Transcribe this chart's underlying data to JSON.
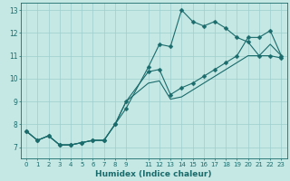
{
  "xlabel": "Humidex (Indice chaleur)",
  "bg_color": "#c5e8e5",
  "grid_color": "#9dcfcc",
  "line_color": "#1a6b6b",
  "xlim": [
    -0.5,
    23.5
  ],
  "ylim": [
    6.5,
    13.3
  ],
  "xticks": [
    0,
    1,
    2,
    3,
    4,
    5,
    6,
    7,
    8,
    9,
    11,
    12,
    13,
    14,
    15,
    16,
    17,
    18,
    19,
    20,
    21,
    22,
    23
  ],
  "yticks": [
    7,
    8,
    9,
    10,
    11,
    12,
    13
  ],
  "line1_x": [
    0,
    1,
    2,
    3,
    4,
    5,
    6,
    7,
    8,
    9,
    11,
    12,
    13,
    14,
    15,
    16,
    17,
    18,
    19,
    20,
    21,
    22,
    23
  ],
  "line1_y": [
    7.7,
    7.3,
    7.5,
    7.1,
    7.1,
    7.2,
    7.3,
    7.3,
    8.0,
    8.7,
    10.5,
    11.5,
    11.4,
    13.0,
    12.5,
    12.3,
    12.5,
    12.2,
    11.8,
    11.6,
    11.0,
    11.0,
    10.9
  ],
  "line2_x": [
    0,
    1,
    2,
    3,
    4,
    5,
    6,
    7,
    8,
    9,
    11,
    12,
    13,
    14,
    15,
    16,
    17,
    18,
    19,
    20,
    21,
    22,
    23
  ],
  "line2_y": [
    7.7,
    7.3,
    7.5,
    7.1,
    7.1,
    7.2,
    7.3,
    7.3,
    8.0,
    9.0,
    10.3,
    10.4,
    9.3,
    9.6,
    9.8,
    10.1,
    10.4,
    10.7,
    11.0,
    11.8,
    11.8,
    12.1,
    11.0
  ],
  "line3_x": [
    0,
    1,
    2,
    3,
    4,
    5,
    6,
    7,
    8,
    9,
    11,
    12,
    13,
    14,
    15,
    16,
    17,
    18,
    19,
    20,
    21,
    22,
    23
  ],
  "line3_y": [
    7.7,
    7.3,
    7.5,
    7.1,
    7.1,
    7.2,
    7.3,
    7.3,
    8.0,
    9.0,
    9.8,
    9.9,
    9.1,
    9.2,
    9.5,
    9.8,
    10.1,
    10.4,
    10.7,
    11.0,
    11.0,
    11.5,
    11.0
  ]
}
